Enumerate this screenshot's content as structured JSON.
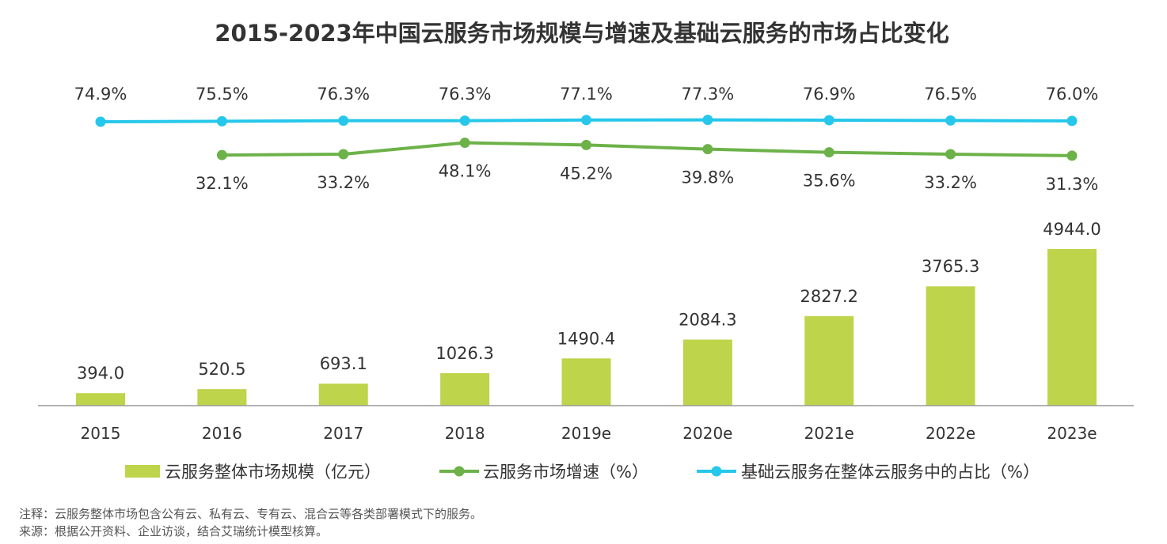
{
  "chart_data": {
    "type": "bar",
    "title": "2015-2023年中国云服务市场规模与增速及基础云服务的市场占比变化",
    "categories": [
      "2015",
      "2016",
      "2017",
      "2018",
      "2019e",
      "2020e",
      "2021e",
      "2022e",
      "2023e"
    ],
    "series": [
      {
        "name": "云服务整体市场规模（亿元）",
        "kind": "bar",
        "color": "#bed44a",
        "values": [
          394.0,
          520.5,
          693.1,
          1026.3,
          1490.4,
          2084.3,
          2827.2,
          3765.3,
          4944.0
        ],
        "labels": [
          "394.0",
          "520.5",
          "693.1",
          "1026.3",
          "1490.4",
          "2084.3",
          "2827.2",
          "3765.3",
          "4944.0"
        ]
      },
      {
        "name": "云服务市场增速（%）",
        "kind": "line",
        "color": "#6cb249",
        "values": [
          null,
          32.1,
          33.2,
          48.1,
          45.2,
          39.8,
          35.6,
          33.2,
          31.3
        ],
        "labels": [
          null,
          "32.1%",
          "33.2%",
          "48.1%",
          "45.2%",
          "39.8%",
          "35.6%",
          "33.2%",
          "31.3%"
        ]
      },
      {
        "name": "基础云服务在整体云服务中的占比（%）",
        "kind": "line",
        "color": "#26c7ea",
        "values": [
          74.9,
          75.5,
          76.3,
          76.3,
          77.1,
          77.3,
          76.9,
          76.5,
          76.0
        ],
        "labels": [
          "74.9%",
          "75.5%",
          "76.3%",
          "76.3%",
          "77.1%",
          "77.3%",
          "76.9%",
          "76.5%",
          "76.0%"
        ]
      }
    ],
    "axis_color": "#999999",
    "grid": false,
    "legend_position": "bottom"
  },
  "notes": {
    "note": "注释：云服务整体市场包含公有云、私有云、专有云、混合云等各类部署模式下的服务。",
    "source": "来源：根据公开资料、企业访谈，结合艾瑞统计模型核算。"
  }
}
